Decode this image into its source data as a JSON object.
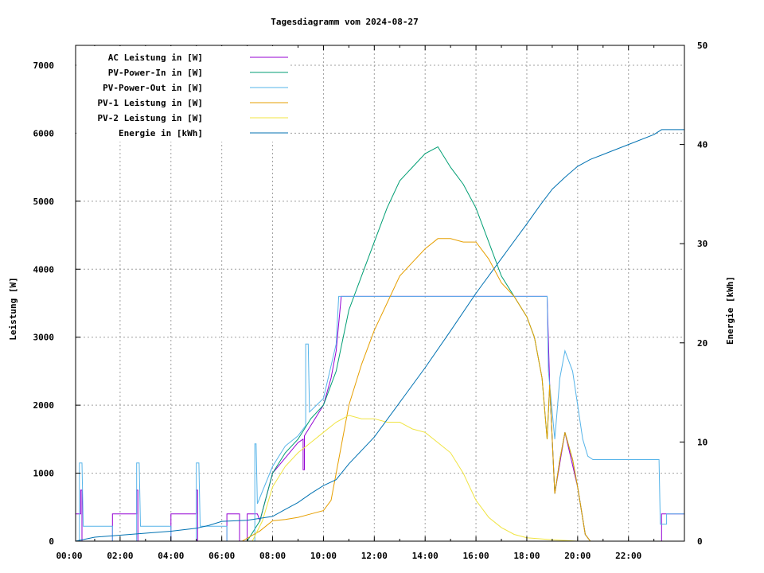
{
  "chart_data": {
    "type": "line",
    "title": "Tagesdiagramm vom 2024-08-27",
    "xlabel": "",
    "ylabel": "Leistung [W]",
    "y2label": "Energie [kWh]",
    "xlim": [
      0.25,
      24.2
    ],
    "ylim": [
      0,
      7292
    ],
    "y2lim": [
      0,
      50
    ],
    "grid": true,
    "legend_position": "top-left",
    "x_ticks": [
      {
        "value": 0,
        "label": "00:00"
      },
      {
        "value": 2,
        "label": "02:00"
      },
      {
        "value": 4,
        "label": "04:00"
      },
      {
        "value": 6,
        "label": "06:00"
      },
      {
        "value": 8,
        "label": "08:00"
      },
      {
        "value": 10,
        "label": "10:00"
      },
      {
        "value": 12,
        "label": "12:00"
      },
      {
        "value": 14,
        "label": "14:00"
      },
      {
        "value": 16,
        "label": "16:00"
      },
      {
        "value": 18,
        "label": "18:00"
      },
      {
        "value": 20,
        "label": "20:00"
      },
      {
        "value": 22,
        "label": "22:00"
      }
    ],
    "y_ticks": [
      0,
      1000,
      2000,
      3000,
      4000,
      5000,
      6000,
      7000
    ],
    "y2_ticks": [
      0,
      10,
      20,
      30,
      40,
      50
    ],
    "series": [
      {
        "name": "AC Leistung in [W]",
        "color": "#9400d3",
        "axis": "y1",
        "points": [
          [
            0.25,
            400
          ],
          [
            0.45,
            400
          ],
          [
            0.45,
            750
          ],
          [
            0.5,
            750
          ],
          [
            0.5,
            0
          ],
          [
            1.7,
            0
          ],
          [
            1.7,
            400
          ],
          [
            2.65,
            400
          ],
          [
            2.65,
            750
          ],
          [
            2.7,
            750
          ],
          [
            2.7,
            0
          ],
          [
            4.0,
            0
          ],
          [
            4.0,
            400
          ],
          [
            5.0,
            400
          ],
          [
            5.0,
            750
          ],
          [
            5.05,
            750
          ],
          [
            5.05,
            0
          ],
          [
            6.2,
            0
          ],
          [
            6.2,
            400
          ],
          [
            6.7,
            400
          ],
          [
            6.7,
            0
          ],
          [
            7.0,
            0
          ],
          [
            7.0,
            400
          ],
          [
            7.4,
            400
          ],
          [
            7.5,
            300
          ],
          [
            8,
            1000
          ],
          [
            9,
            1450
          ],
          [
            9.2,
            1500
          ],
          [
            9.2,
            1050
          ],
          [
            9.25,
            1050
          ],
          [
            9.25,
            1550
          ],
          [
            10,
            2000
          ],
          [
            10.3,
            2400
          ],
          [
            10.5,
            2800
          ],
          [
            10.7,
            3600
          ],
          [
            12,
            3600
          ],
          [
            14,
            3600
          ],
          [
            16,
            3600
          ],
          [
            18,
            3600
          ],
          [
            18.8,
            3600
          ],
          [
            18.9,
            2300
          ],
          [
            19.1,
            700
          ],
          [
            19.5,
            1600
          ],
          [
            20,
            800
          ],
          [
            20.3,
            100
          ],
          [
            20.5,
            0
          ],
          [
            23.3,
            0
          ],
          [
            23.3,
            400
          ],
          [
            24.2,
            400
          ]
        ]
      },
      {
        "name": "PV-Power-In in [W]",
        "color": "#009e73",
        "axis": "y1",
        "points": [
          [
            0.25,
            0
          ],
          [
            7.0,
            0
          ],
          [
            7.5,
            300
          ],
          [
            8,
            1000
          ],
          [
            8.5,
            1300
          ],
          [
            9,
            1500
          ],
          [
            9.5,
            1800
          ],
          [
            10,
            2000
          ],
          [
            10.5,
            2500
          ],
          [
            11,
            3400
          ],
          [
            11.5,
            3900
          ],
          [
            12,
            4400
          ],
          [
            12.5,
            4900
          ],
          [
            13,
            5300
          ],
          [
            13.5,
            5500
          ],
          [
            14,
            5700
          ],
          [
            14.5,
            5800
          ],
          [
            15,
            5500
          ],
          [
            15.5,
            5250
          ],
          [
            16,
            4900
          ],
          [
            16.5,
            4400
          ],
          [
            17,
            3900
          ],
          [
            17.5,
            3600
          ],
          [
            18,
            3300
          ],
          [
            18.3,
            3000
          ],
          [
            18.6,
            2400
          ],
          [
            18.8,
            1500
          ],
          [
            18.9,
            2300
          ],
          [
            19.1,
            700
          ],
          [
            19.3,
            1200
          ],
          [
            19.5,
            1600
          ],
          [
            19.8,
            1200
          ],
          [
            20,
            800
          ],
          [
            20.3,
            100
          ],
          [
            20.5,
            0
          ],
          [
            24.2,
            0
          ]
        ]
      },
      {
        "name": "PV-Power-Out in [W]",
        "color": "#56b4e9",
        "axis": "y1",
        "points": [
          [
            0.25,
            0
          ],
          [
            0.4,
            0
          ],
          [
            0.4,
            1150
          ],
          [
            0.5,
            1150
          ],
          [
            0.55,
            220
          ],
          [
            1.7,
            220
          ],
          [
            1.7,
            0
          ],
          [
            2.65,
            0
          ],
          [
            2.65,
            1150
          ],
          [
            2.75,
            1150
          ],
          [
            2.8,
            220
          ],
          [
            4.0,
            220
          ],
          [
            4.0,
            0
          ],
          [
            5.0,
            0
          ],
          [
            5.0,
            1150
          ],
          [
            5.1,
            1150
          ],
          [
            5.15,
            220
          ],
          [
            6.2,
            220
          ],
          [
            6.2,
            0
          ],
          [
            7.3,
            0
          ],
          [
            7.3,
            1430
          ],
          [
            7.35,
            1430
          ],
          [
            7.4,
            550
          ],
          [
            8,
            1100
          ],
          [
            8.5,
            1400
          ],
          [
            9,
            1550
          ],
          [
            9.3,
            1700
          ],
          [
            9.3,
            2900
          ],
          [
            9.4,
            2900
          ],
          [
            9.45,
            1900
          ],
          [
            10,
            2100
          ],
          [
            10.5,
            2900
          ],
          [
            10.6,
            3600
          ],
          [
            12,
            3600
          ],
          [
            14,
            3600
          ],
          [
            16,
            3600
          ],
          [
            18,
            3600
          ],
          [
            18.8,
            3600
          ],
          [
            18.85,
            2500
          ],
          [
            19.1,
            1500
          ],
          [
            19.3,
            2400
          ],
          [
            19.5,
            2800
          ],
          [
            19.8,
            2500
          ],
          [
            20.2,
            1500
          ],
          [
            20.4,
            1250
          ],
          [
            20.6,
            1200
          ],
          [
            23.2,
            1200
          ],
          [
            23.25,
            250
          ],
          [
            23.5,
            250
          ],
          [
            23.5,
            400
          ],
          [
            24.2,
            400
          ]
        ]
      },
      {
        "name": "PV-1 Leistung in [W]",
        "color": "#e69f00",
        "axis": "y1",
        "points": [
          [
            0.25,
            0
          ],
          [
            6.8,
            0
          ],
          [
            7.5,
            150
          ],
          [
            8,
            300
          ],
          [
            8.5,
            320
          ],
          [
            9,
            350
          ],
          [
            9.5,
            400
          ],
          [
            10,
            450
          ],
          [
            10.3,
            600
          ],
          [
            10.5,
            1000
          ],
          [
            11,
            2000
          ],
          [
            11.5,
            2600
          ],
          [
            12,
            3100
          ],
          [
            12.5,
            3500
          ],
          [
            13,
            3900
          ],
          [
            13.5,
            4100
          ],
          [
            14,
            4300
          ],
          [
            14.5,
            4450
          ],
          [
            15,
            4450
          ],
          [
            15.5,
            4400
          ],
          [
            16,
            4400
          ],
          [
            16.5,
            4150
          ],
          [
            17,
            3800
          ],
          [
            17.5,
            3600
          ],
          [
            18,
            3300
          ],
          [
            18.3,
            3000
          ],
          [
            18.6,
            2400
          ],
          [
            18.8,
            1500
          ],
          [
            18.9,
            2300
          ],
          [
            19.1,
            700
          ],
          [
            19.3,
            1200
          ],
          [
            19.5,
            1600
          ],
          [
            19.8,
            1200
          ],
          [
            20,
            800
          ],
          [
            20.3,
            100
          ],
          [
            20.5,
            0
          ],
          [
            24.2,
            0
          ]
        ]
      },
      {
        "name": "PV-2 Leistung in [W]",
        "color": "#f0e442",
        "axis": "y1",
        "points": [
          [
            0.25,
            0
          ],
          [
            7.2,
            0
          ],
          [
            7.6,
            300
          ],
          [
            8,
            800
          ],
          [
            8.5,
            1100
          ],
          [
            9,
            1300
          ],
          [
            9.5,
            1450
          ],
          [
            10,
            1600
          ],
          [
            10.5,
            1750
          ],
          [
            11,
            1850
          ],
          [
            11.5,
            1800
          ],
          [
            12,
            1800
          ],
          [
            12.5,
            1750
          ],
          [
            13,
            1750
          ],
          [
            13.5,
            1650
          ],
          [
            14,
            1600
          ],
          [
            14.5,
            1450
          ],
          [
            15,
            1300
          ],
          [
            15.5,
            1000
          ],
          [
            16,
            600
          ],
          [
            16.5,
            350
          ],
          [
            17,
            200
          ],
          [
            17.5,
            100
          ],
          [
            18,
            50
          ],
          [
            19,
            20
          ],
          [
            20,
            0
          ],
          [
            24.2,
            0
          ]
        ]
      },
      {
        "name": "Energie in [kWh]",
        "color": "#0072b2",
        "axis": "y2",
        "points": [
          [
            0.25,
            0
          ],
          [
            1,
            0.4
          ],
          [
            2,
            0.6
          ],
          [
            3,
            0.8
          ],
          [
            4,
            1.0
          ],
          [
            5,
            1.3
          ],
          [
            5.5,
            1.6
          ],
          [
            6,
            2.0
          ],
          [
            7,
            2.1
          ],
          [
            8,
            2.5
          ],
          [
            8.5,
            3.2
          ],
          [
            9,
            3.9
          ],
          [
            9.5,
            4.8
          ],
          [
            10,
            5.6
          ],
          [
            10.5,
            6.2
          ],
          [
            11,
            7.8
          ],
          [
            12,
            10.5
          ],
          [
            13,
            14.0
          ],
          [
            14,
            17.5
          ],
          [
            15,
            21.2
          ],
          [
            16,
            25.0
          ],
          [
            17,
            28.5
          ],
          [
            18,
            32.0
          ],
          [
            18.5,
            33.8
          ],
          [
            19,
            35.5
          ],
          [
            19.5,
            36.7
          ],
          [
            20,
            37.8
          ],
          [
            20.5,
            38.5
          ],
          [
            21,
            39.0
          ],
          [
            22,
            40.0
          ],
          [
            23,
            41.0
          ],
          [
            23.3,
            41.5
          ],
          [
            24.2,
            41.5
          ]
        ]
      }
    ]
  }
}
